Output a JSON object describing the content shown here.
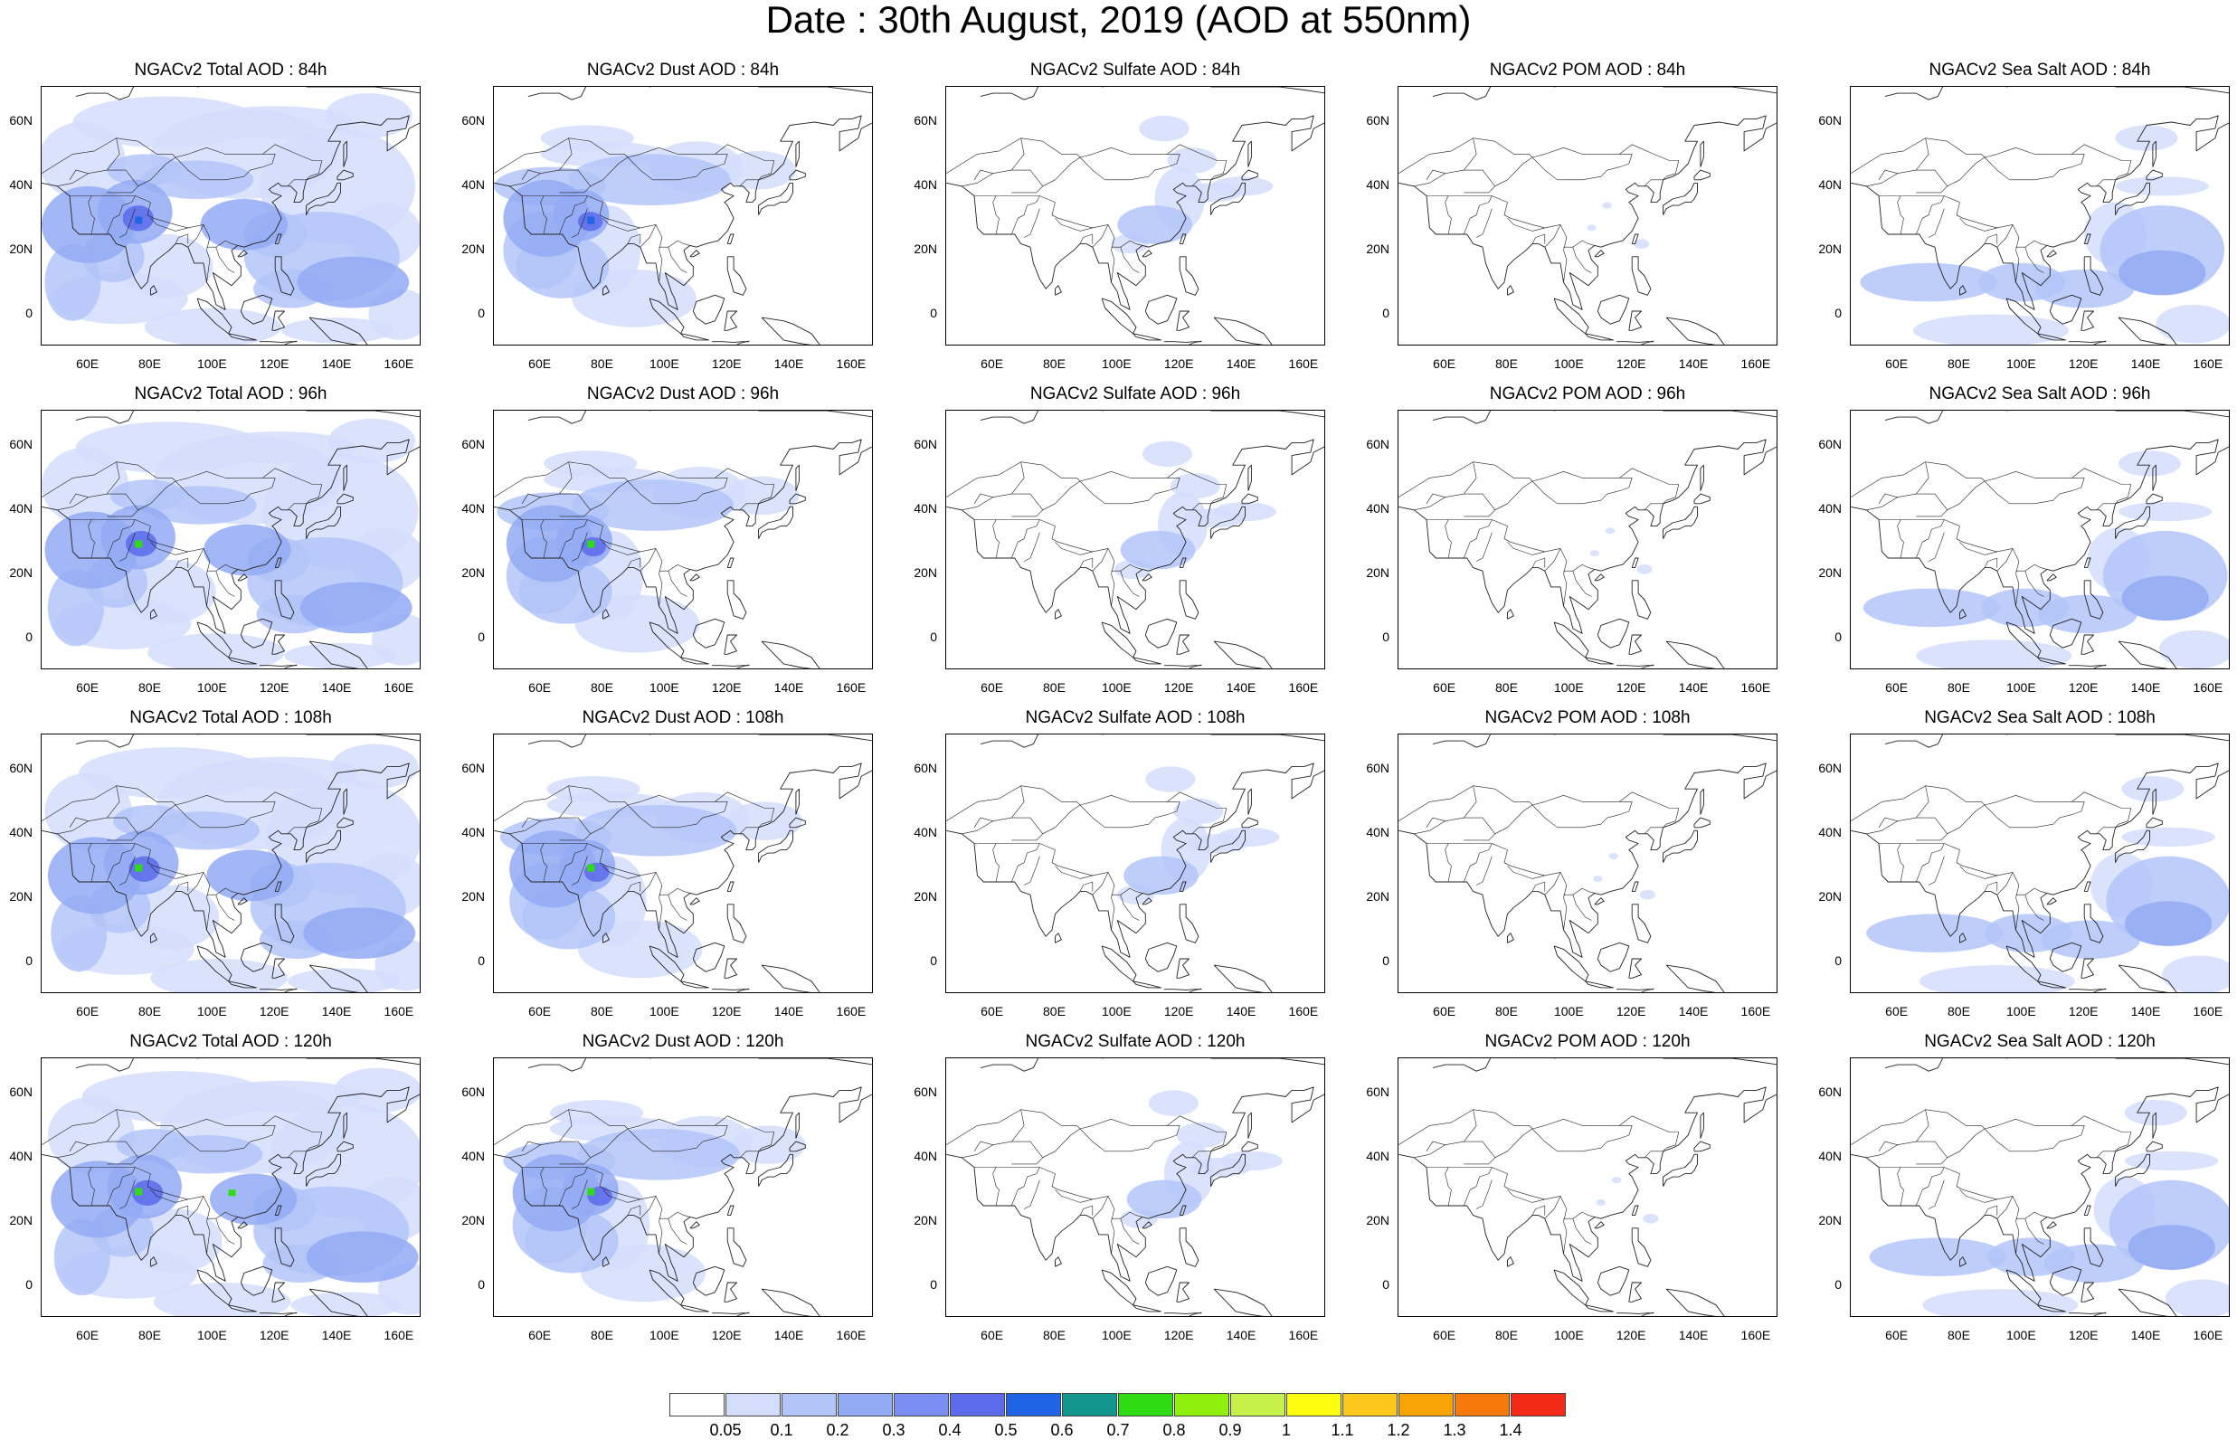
{
  "title": "Date : 30th August, 2019 (AOD at 550nm)",
  "panels": [
    [
      {
        "title": "NGACv2 Total AOD : 84h",
        "type": "total"
      },
      {
        "title": "NGACv2 Dust AOD : 84h",
        "type": "dust"
      },
      {
        "title": "NGACv2 Sulfate AOD : 84h",
        "type": "sulfate"
      },
      {
        "title": "NGACv2 POM AOD : 84h",
        "type": "pom"
      },
      {
        "title": "NGACv2 Sea Salt AOD : 84h",
        "type": "seasalt"
      }
    ],
    [
      {
        "title": "NGACv2 Total AOD : 96h",
        "type": "total"
      },
      {
        "title": "NGACv2 Dust AOD : 96h",
        "type": "dust"
      },
      {
        "title": "NGACv2 Sulfate AOD : 96h",
        "type": "sulfate"
      },
      {
        "title": "NGACv2 POM AOD : 96h",
        "type": "pom"
      },
      {
        "title": "NGACv2 Sea Salt AOD : 96h",
        "type": "seasalt"
      }
    ],
    [
      {
        "title": "NGACv2 Total AOD : 108h",
        "type": "total"
      },
      {
        "title": "NGACv2 Dust AOD : 108h",
        "type": "dust"
      },
      {
        "title": "NGACv2 Sulfate AOD : 108h",
        "type": "sulfate"
      },
      {
        "title": "NGACv2 POM AOD : 108h",
        "type": "pom"
      },
      {
        "title": "NGACv2 Sea Salt AOD : 108h",
        "type": "seasalt"
      }
    ],
    [
      {
        "title": "NGACv2 Total AOD : 120h",
        "type": "total"
      },
      {
        "title": "NGACv2 Dust AOD : 120h",
        "type": "dust"
      },
      {
        "title": "NGACv2 Sulfate AOD : 120h",
        "type": "sulfate"
      },
      {
        "title": "NGACv2 POM AOD : 120h",
        "type": "pom"
      },
      {
        "title": "NGACv2 Sea Salt  AOD : 120h",
        "type": "seasalt"
      }
    ]
  ],
  "lat_ticks": [
    "60N",
    "40N",
    "20N",
    "0"
  ],
  "lon_ticks": [
    "60E",
    "80E",
    "100E",
    "120E",
    "140E",
    "160E"
  ],
  "colorbar": {
    "colors": [
      "#ffffff",
      "#d4ddfb",
      "#b3c4f8",
      "#93aaf5",
      "#7b8ff2",
      "#5c6bea",
      "#1f63e6",
      "#13968d",
      "#2fdc14",
      "#8ef00c",
      "#c6f04a",
      "#fdfd0f",
      "#fbc81b",
      "#f9a406",
      "#f57a09",
      "#f42a17"
    ],
    "labels": [
      "0.05",
      "0.1",
      "0.2",
      "0.3",
      "0.4",
      "0.5",
      "0.6",
      "0.7",
      "0.8",
      "0.9",
      "1",
      "1.1",
      "1.2",
      "1.3",
      "1.4"
    ]
  }
}
